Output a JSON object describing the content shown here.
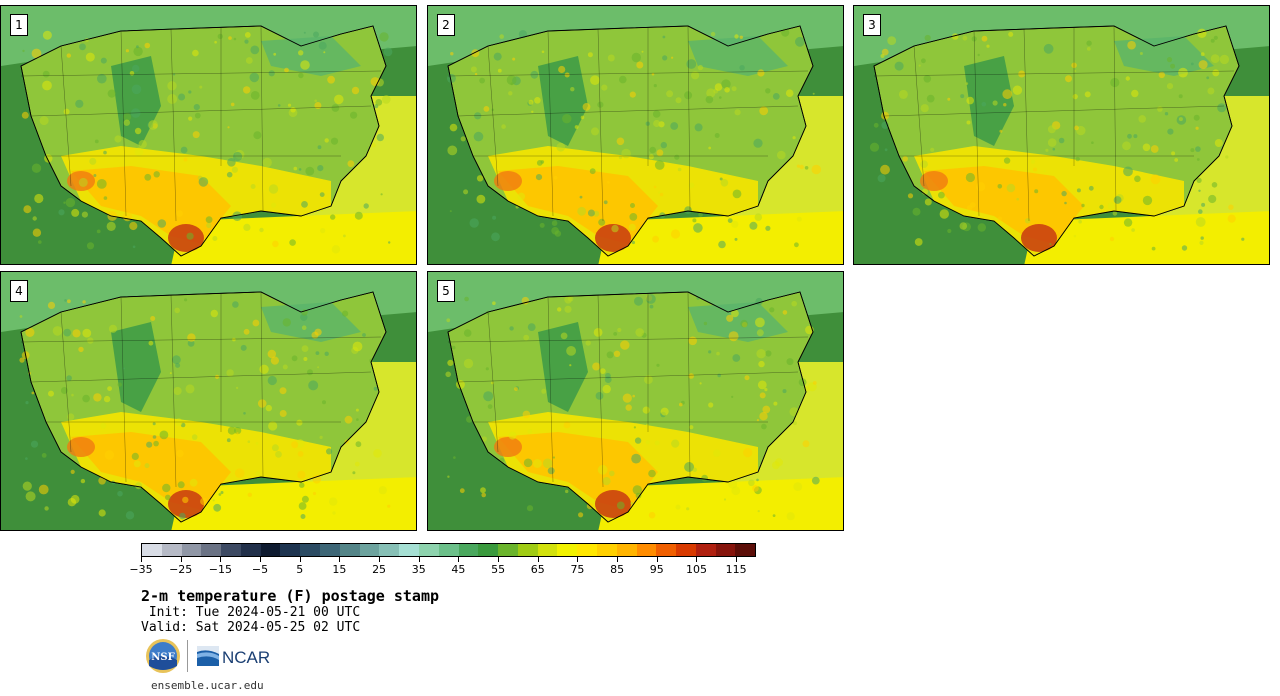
{
  "panels": [
    {
      "label": "1",
      "seed": 11
    },
    {
      "label": "2",
      "seed": 23
    },
    {
      "label": "3",
      "seed": 37
    },
    {
      "label": "4",
      "seed": 41
    },
    {
      "label": "5",
      "seed": 53
    }
  ],
  "colorbar": {
    "colors": [
      "#d9dde6",
      "#b6bac6",
      "#9097a6",
      "#6b7385",
      "#3d4a63",
      "#22304a",
      "#0f1b30",
      "#1e3450",
      "#2b4b63",
      "#3d6676",
      "#548588",
      "#6da39e",
      "#87c0b6",
      "#a6e0d4",
      "#8ed3ae",
      "#6cc08a",
      "#4aa85e",
      "#3a9a3d",
      "#6ab42c",
      "#a0cc14",
      "#d2e10c",
      "#f1f200",
      "#ffe700",
      "#ffd000",
      "#ffb400",
      "#ff8c00",
      "#f05f00",
      "#d83a00",
      "#b02010",
      "#86140c",
      "#5c0e08"
    ],
    "tick_labels": [
      "−35",
      "−25",
      "−15",
      "−5",
      "5",
      "15",
      "25",
      "35",
      "45",
      "55",
      "65",
      "75",
      "85",
      "95",
      "105",
      "115"
    ]
  },
  "title": "2-m temperature (F) postage stamp",
  "init": " Init: Tue 2024-05-21 00 UTC",
  "valid": "Valid: Sat 2024-05-25 02 UTC",
  "logos": {
    "nsf": "NSF",
    "ncar": "NCAR"
  },
  "site": "ensemble.ucar.edu",
  "colors": {
    "ocean_pacific": "#3f8f3a",
    "land_base": "#8fc63a",
    "gulf": "#f3ee00",
    "atlantic": "#d9e82a"
  }
}
